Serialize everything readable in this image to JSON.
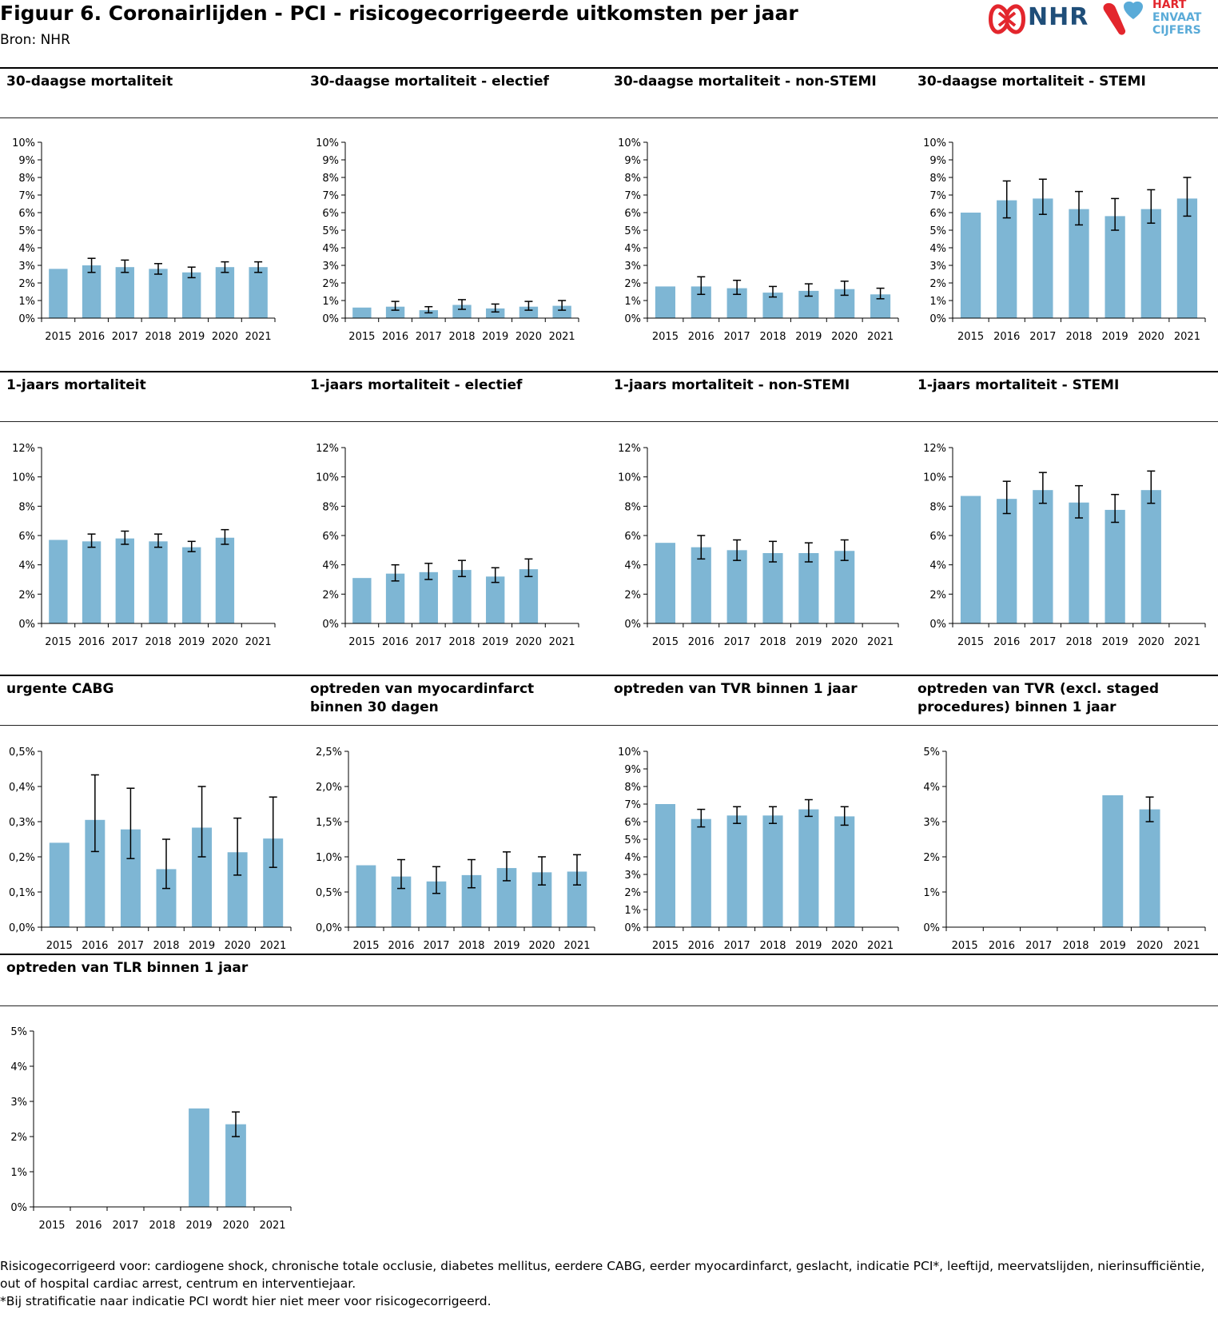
{
  "title": "Figuur 6. Coronairlijden - PCI - risicogecorrigeerde uitkomsten per jaar",
  "source": "Bron: NHR",
  "logos": {
    "nhr": "NHR",
    "hart_lines": [
      "HART",
      "EN",
      "VAAT",
      "CIJFERS"
    ]
  },
  "colors": {
    "bar": "#7eb6d4",
    "axis": "#000000",
    "nhr_red": "#e3262d",
    "nhr_blue": "#1f4e79",
    "light_blue": "#5aabd8"
  },
  "chart_data": [
    {
      "type": "bar",
      "title": "30-daagse mortaliteit",
      "categories": [
        "2015",
        "2016",
        "2017",
        "2018",
        "2019",
        "2020",
        "2021"
      ],
      "values": [
        2.8,
        3.0,
        2.9,
        2.8,
        2.6,
        2.9,
        2.9
      ],
      "error_low": [
        null,
        2.6,
        2.6,
        2.5,
        2.3,
        2.6,
        2.6
      ],
      "error_high": [
        null,
        3.4,
        3.3,
        3.1,
        2.9,
        3.2,
        3.2
      ],
      "ylim": [
        0,
        10
      ],
      "yticks": [
        0,
        1,
        2,
        3,
        4,
        5,
        6,
        7,
        8,
        9,
        10
      ],
      "ytick_labels": [
        "0%",
        "1%",
        "2%",
        "3%",
        "4%",
        "5%",
        "6%",
        "7%",
        "8%",
        "9%",
        "10%"
      ]
    },
    {
      "type": "bar",
      "title": "30-daagse mortaliteit - electief",
      "categories": [
        "2015",
        "2016",
        "2017",
        "2018",
        "2019",
        "2020",
        "2021"
      ],
      "values": [
        0.6,
        0.65,
        0.45,
        0.75,
        0.55,
        0.65,
        0.7
      ],
      "error_low": [
        null,
        0.45,
        0.3,
        0.5,
        0.35,
        0.45,
        0.45
      ],
      "error_high": [
        null,
        0.95,
        0.65,
        1.05,
        0.8,
        0.95,
        1.0
      ],
      "ylim": [
        0,
        10
      ],
      "yticks": [
        0,
        1,
        2,
        3,
        4,
        5,
        6,
        7,
        8,
        9,
        10
      ],
      "ytick_labels": [
        "0%",
        "1%",
        "2%",
        "3%",
        "4%",
        "5%",
        "6%",
        "7%",
        "8%",
        "9%",
        "10%"
      ]
    },
    {
      "type": "bar",
      "title": "30-daagse mortaliteit - non-STEMI",
      "categories": [
        "2015",
        "2016",
        "2017",
        "2018",
        "2019",
        "2020",
        "2021"
      ],
      "values": [
        1.8,
        1.8,
        1.7,
        1.45,
        1.55,
        1.65,
        1.35
      ],
      "error_low": [
        null,
        1.35,
        1.35,
        1.2,
        1.25,
        1.3,
        1.1
      ],
      "error_high": [
        null,
        2.35,
        2.15,
        1.8,
        1.95,
        2.1,
        1.7
      ],
      "ylim": [
        0,
        10
      ],
      "yticks": [
        0,
        1,
        2,
        3,
        4,
        5,
        6,
        7,
        8,
        9,
        10
      ],
      "ytick_labels": [
        "0%",
        "1%",
        "2%",
        "3%",
        "4%",
        "5%",
        "6%",
        "7%",
        "8%",
        "9%",
        "10%"
      ]
    },
    {
      "type": "bar",
      "title": "30-daagse mortaliteit - STEMI",
      "categories": [
        "2015",
        "2016",
        "2017",
        "2018",
        "2019",
        "2020",
        "2021"
      ],
      "values": [
        6.0,
        6.7,
        6.8,
        6.2,
        5.8,
        6.2,
        6.8
      ],
      "error_low": [
        null,
        5.7,
        5.9,
        5.3,
        5.0,
        5.4,
        5.8
      ],
      "error_high": [
        null,
        7.8,
        7.9,
        7.2,
        6.8,
        7.3,
        8.0
      ],
      "ylim": [
        0,
        10
      ],
      "yticks": [
        0,
        1,
        2,
        3,
        4,
        5,
        6,
        7,
        8,
        9,
        10
      ],
      "ytick_labels": [
        "0%",
        "1%",
        "2%",
        "3%",
        "4%",
        "5%",
        "6%",
        "7%",
        "8%",
        "9%",
        "10%"
      ]
    },
    {
      "type": "bar",
      "title": "1-jaars mortaliteit",
      "categories": [
        "2015",
        "2016",
        "2017",
        "2018",
        "2019",
        "2020",
        "2021"
      ],
      "values": [
        5.7,
        5.6,
        5.8,
        5.6,
        5.2,
        5.85,
        0
      ],
      "error_low": [
        null,
        5.2,
        5.4,
        5.2,
        4.9,
        5.4,
        null
      ],
      "error_high": [
        null,
        6.1,
        6.3,
        6.1,
        5.6,
        6.4,
        null
      ],
      "ylim": [
        0,
        12
      ],
      "yticks": [
        0,
        2,
        4,
        6,
        8,
        10,
        12
      ],
      "ytick_labels": [
        "0%",
        "2%",
        "4%",
        "6%",
        "8%",
        "10%",
        "12%"
      ]
    },
    {
      "type": "bar",
      "title": "1-jaars mortaliteit - electief",
      "categories": [
        "2015",
        "2016",
        "2017",
        "2018",
        "2019",
        "2020",
        "2021"
      ],
      "values": [
        3.1,
        3.4,
        3.5,
        3.65,
        3.2,
        3.7,
        0
      ],
      "error_low": [
        null,
        2.9,
        3.0,
        3.2,
        2.8,
        3.2,
        null
      ],
      "error_high": [
        null,
        4.0,
        4.1,
        4.3,
        3.8,
        4.4,
        null
      ],
      "ylim": [
        0,
        12
      ],
      "yticks": [
        0,
        2,
        4,
        6,
        8,
        10,
        12
      ],
      "ytick_labels": [
        "0%",
        "2%",
        "4%",
        "6%",
        "8%",
        "10%",
        "12%"
      ]
    },
    {
      "type": "bar",
      "title": "1-jaars mortaliteit - non-STEMI",
      "categories": [
        "2015",
        "2016",
        "2017",
        "2018",
        "2019",
        "2020",
        "2021"
      ],
      "values": [
        5.5,
        5.2,
        5.0,
        4.8,
        4.8,
        4.95,
        0
      ],
      "error_low": [
        null,
        4.4,
        4.3,
        4.2,
        4.2,
        4.3,
        null
      ],
      "error_high": [
        null,
        6.0,
        5.7,
        5.6,
        5.5,
        5.7,
        null
      ],
      "ylim": [
        0,
        12
      ],
      "yticks": [
        0,
        2,
        4,
        6,
        8,
        10,
        12
      ],
      "ytick_labels": [
        "0%",
        "2%",
        "4%",
        "6%",
        "8%",
        "10%",
        "12%"
      ]
    },
    {
      "type": "bar",
      "title": "1-jaars mortaliteit - STEMI",
      "categories": [
        "2015",
        "2016",
        "2017",
        "2018",
        "2019",
        "2020",
        "2021"
      ],
      "values": [
        8.7,
        8.5,
        9.1,
        8.25,
        7.75,
        9.1,
        0
      ],
      "error_low": [
        null,
        7.5,
        8.2,
        7.2,
        6.9,
        8.2,
        null
      ],
      "error_high": [
        null,
        9.7,
        10.3,
        9.4,
        8.8,
        10.4,
        null
      ],
      "ylim": [
        0,
        12
      ],
      "yticks": [
        0,
        2,
        4,
        6,
        8,
        10,
        12
      ],
      "ytick_labels": [
        "0%",
        "2%",
        "4%",
        "6%",
        "8%",
        "10%",
        "12%"
      ]
    },
    {
      "type": "bar",
      "title": "urgente CABG",
      "categories": [
        "2015",
        "2016",
        "2017",
        "2018",
        "2019",
        "2020",
        "2021"
      ],
      "values": [
        0.24,
        0.305,
        0.278,
        0.165,
        0.283,
        0.213,
        0.252
      ],
      "error_low": [
        null,
        0.215,
        0.195,
        0.11,
        0.2,
        0.148,
        0.17
      ],
      "error_high": [
        null,
        0.433,
        0.395,
        0.25,
        0.4,
        0.31,
        0.37
      ],
      "ylim": [
        0,
        0.5
      ],
      "yticks": [
        0,
        0.1,
        0.2,
        0.3,
        0.4,
        0.5
      ],
      "ytick_labels": [
        "0,0%",
        "0,1%",
        "0,2%",
        "0,3%",
        "0,4%",
        "0,5%"
      ]
    },
    {
      "type": "bar",
      "title": "optreden van myocardinfarct\nbinnen 30 dagen",
      "categories": [
        "2015",
        "2016",
        "2017",
        "2018",
        "2019",
        "2020",
        "2021"
      ],
      "values": [
        0.88,
        0.72,
        0.65,
        0.74,
        0.84,
        0.78,
        0.79
      ],
      "error_low": [
        null,
        0.55,
        0.48,
        0.56,
        0.66,
        0.6,
        0.6
      ],
      "error_high": [
        null,
        0.96,
        0.86,
        0.96,
        1.07,
        1.0,
        1.03
      ],
      "ylim": [
        0,
        2.5
      ],
      "yticks": [
        0,
        0.5,
        1,
        1.5,
        2,
        2.5
      ],
      "ytick_labels": [
        "0,0%",
        "0,5%",
        "1,0%",
        "1,5%",
        "2,0%",
        "2,5%"
      ]
    },
    {
      "type": "bar",
      "title": "optreden van TVR binnen 1 jaar",
      "categories": [
        "2015",
        "2016",
        "2017",
        "2018",
        "2019",
        "2020",
        "2021"
      ],
      "values": [
        7.0,
        6.15,
        6.35,
        6.35,
        6.7,
        6.3,
        0
      ],
      "error_low": [
        null,
        5.7,
        5.9,
        5.9,
        6.3,
        5.8,
        null
      ],
      "error_high": [
        null,
        6.7,
        6.85,
        6.85,
        7.25,
        6.85,
        null
      ],
      "ylim": [
        0,
        10
      ],
      "yticks": [
        0,
        1,
        2,
        3,
        4,
        5,
        6,
        7,
        8,
        9,
        10
      ],
      "ytick_labels": [
        "0%",
        "1%",
        "2%",
        "3%",
        "4%",
        "5%",
        "6%",
        "7%",
        "8%",
        "9%",
        "10%"
      ]
    },
    {
      "type": "bar",
      "title": "optreden van TVR (excl. staged\nprocedures) binnen 1 jaar",
      "categories": [
        "2015",
        "2016",
        "2017",
        "2018",
        "2019",
        "2020",
        "2021"
      ],
      "values": [
        0,
        0,
        0,
        0,
        3.75,
        3.35,
        0
      ],
      "error_low": [
        null,
        null,
        null,
        null,
        null,
        3.0,
        null
      ],
      "error_high": [
        null,
        null,
        null,
        null,
        null,
        3.7,
        null
      ],
      "ylim": [
        0,
        5
      ],
      "yticks": [
        0,
        1,
        2,
        3,
        4,
        5
      ],
      "ytick_labels": [
        "0%",
        "1%",
        "2%",
        "3%",
        "4%",
        "5%"
      ]
    },
    {
      "type": "bar",
      "title": "optreden van TLR binnen 1 jaar",
      "categories": [
        "2015",
        "2016",
        "2017",
        "2018",
        "2019",
        "2020",
        "2021"
      ],
      "values": [
        0,
        0,
        0,
        0,
        2.8,
        2.35,
        0
      ],
      "error_low": [
        null,
        null,
        null,
        null,
        null,
        2.0,
        null
      ],
      "error_high": [
        null,
        null,
        null,
        null,
        null,
        2.7,
        null
      ],
      "ylim": [
        0,
        5
      ],
      "yticks": [
        0,
        1,
        2,
        3,
        4,
        5
      ],
      "ytick_labels": [
        "0%",
        "1%",
        "2%",
        "3%",
        "4%",
        "5%"
      ]
    }
  ],
  "footnote": "Risicogecorrigeerd voor: cardiogene shock, chronische totale occlusie, diabetes mellitus, eerdere CABG, eerder myocardinfarct, geslacht, indicatie PCI*, leeftijd, meervatslijden, nierinsufficiëntie,\nout of hospital cardiac arrest, centrum en interventiejaar.\n*Bij stratificatie naar indicatie PCI wordt hier niet meer voor risicogecorrigeerd."
}
